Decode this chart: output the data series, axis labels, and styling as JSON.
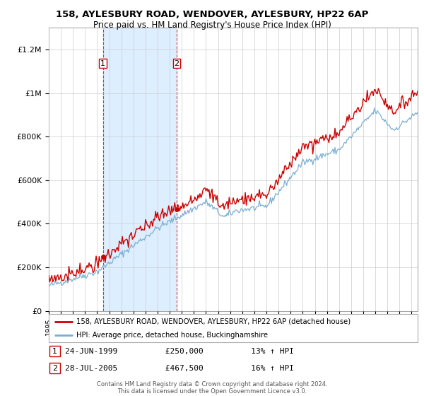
{
  "title_line1": "158, AYLESBURY ROAD, WENDOVER, AYLESBURY, HP22 6AP",
  "title_line2": "Price paid vs. HM Land Registry's House Price Index (HPI)",
  "ylabel_ticks": [
    "£0",
    "£200K",
    "£400K",
    "£600K",
    "£800K",
    "£1M",
    "£1.2M"
  ],
  "ytick_values": [
    0,
    200000,
    400000,
    600000,
    800000,
    1000000,
    1200000
  ],
  "ylim": [
    0,
    1300000
  ],
  "xlim_start": 1995.0,
  "xlim_end": 2025.5,
  "sale1_year": 1999.47,
  "sale1_price": 250000,
  "sale1_date": "24-JUN-1999",
  "sale1_hpi_pct": "13%",
  "sale2_year": 2005.56,
  "sale2_price": 467500,
  "sale2_date": "28-JUL-2005",
  "sale2_hpi_pct": "16%",
  "legend_label_red": "158, AYLESBURY ROAD, WENDOVER, AYLESBURY, HP22 6AP (detached house)",
  "legend_label_blue": "HPI: Average price, detached house, Buckinghamshire",
  "footer_line1": "Contains HM Land Registry data © Crown copyright and database right 2024.",
  "footer_line2": "This data is licensed under the Open Government Licence v3.0.",
  "red_color": "#cc0000",
  "blue_color": "#7aafd4",
  "shade_color": "#ddeeff",
  "background_color": "#ffffff",
  "grid_color": "#cccccc"
}
